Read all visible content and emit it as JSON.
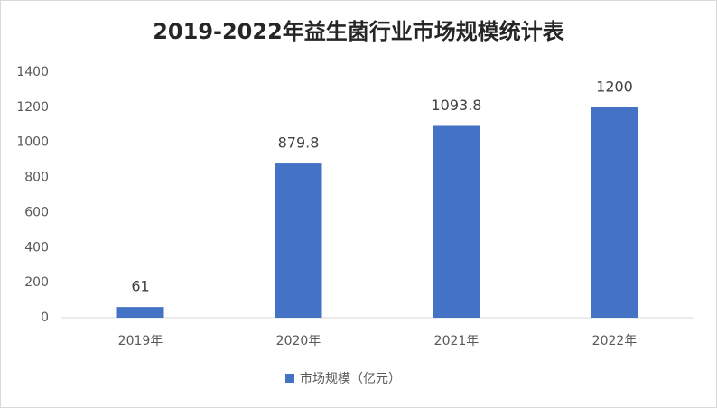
{
  "chart_data": {
    "type": "bar",
    "title": "2019-2022年益生菌行业市场规模统计表",
    "categories": [
      "2019年",
      "2020年",
      "2021年",
      "2022年"
    ],
    "series": [
      {
        "name": "市场规模（亿元）",
        "color": "#4472c4",
        "values": [
          61,
          879.8,
          1093.8,
          1200
        ]
      }
    ],
    "ylim": [
      0,
      1400
    ],
    "yticks": [
      0,
      200,
      400,
      600,
      800,
      1000,
      1200,
      1400
    ],
    "grid": false,
    "legend": "bottom"
  }
}
